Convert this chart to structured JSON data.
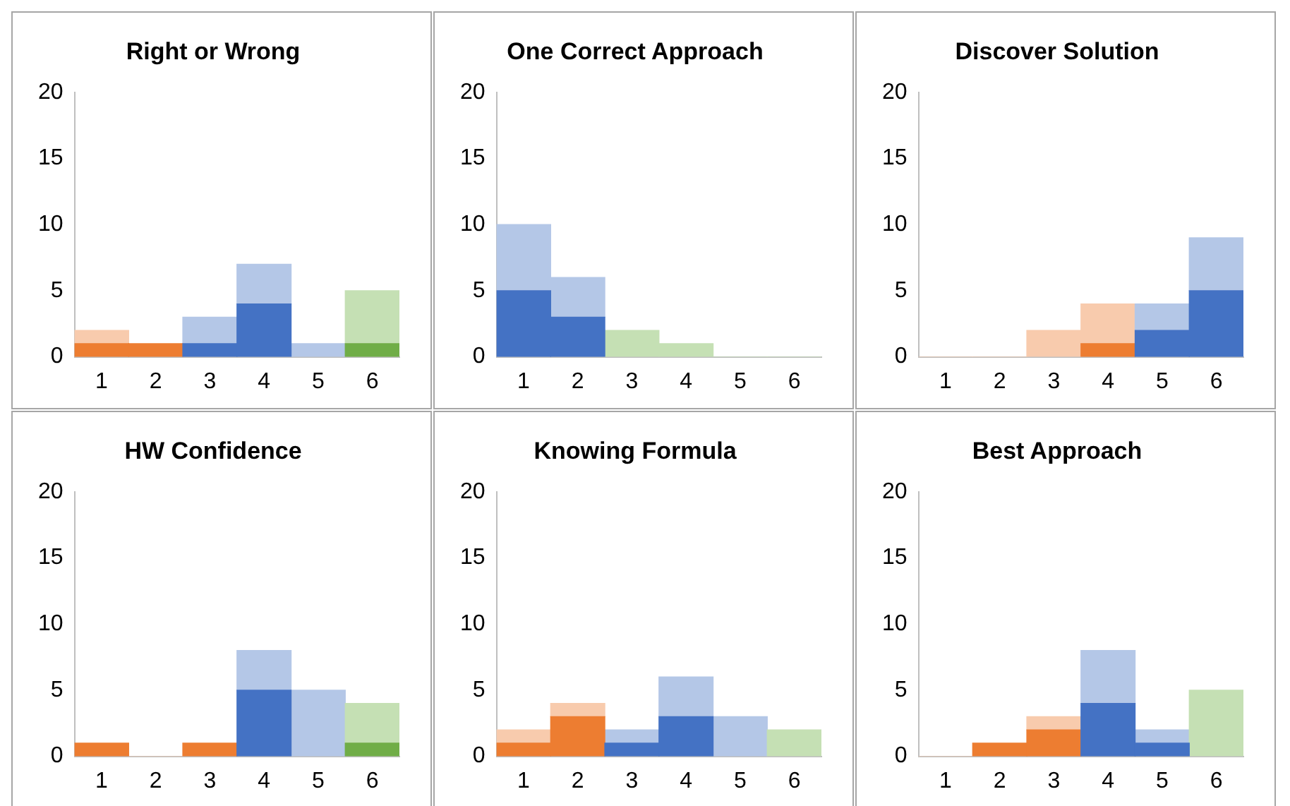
{
  "chart_data": [
    {
      "type": "bar",
      "title": "Right or Wrong",
      "categories": [
        "1",
        "2",
        "3",
        "4",
        "5",
        "6"
      ],
      "ylim": [
        0,
        20
      ],
      "yticks": [
        0,
        5,
        10,
        15,
        20
      ],
      "grid": false,
      "stacked": true,
      "series": [
        {
          "values": [
            1,
            1,
            1,
            4,
            null,
            1
          ],
          "colors": [
            "#ed7d31",
            "#ed7d31",
            "#4472c4",
            "#4472c4",
            "#4472c4",
            "#70ad47"
          ]
        },
        {
          "values": [
            1,
            null,
            2,
            3,
            1,
            4
          ],
          "colors": [
            "#f8cbad",
            "#f8cbad",
            "#b4c7e7",
            "#b4c7e7",
            "#b4c7e7",
            "#c5e0b4"
          ]
        }
      ]
    },
    {
      "type": "bar",
      "title": "One Correct Approach",
      "categories": [
        "1",
        "2",
        "3",
        "4",
        "5",
        "6"
      ],
      "ylim": [
        0,
        20
      ],
      "yticks": [
        0,
        5,
        10,
        15,
        20
      ],
      "grid": false,
      "stacked": true,
      "series": [
        {
          "values": [
            5,
            3,
            null,
            null,
            null,
            null
          ],
          "colors": [
            "#4472c4",
            "#4472c4",
            "#70ad47",
            "#70ad47",
            "#70ad47",
            "#70ad47"
          ]
        },
        {
          "values": [
            5,
            3,
            2,
            1,
            0,
            0
          ],
          "colors": [
            "#b4c7e7",
            "#b4c7e7",
            "#c5e0b4",
            "#c5e0b4",
            "#c5e0b4",
            "#c5e0b4"
          ]
        }
      ]
    },
    {
      "type": "bar",
      "title": "Discover Solution",
      "categories": [
        "1",
        "2",
        "3",
        "4",
        "5",
        "6"
      ],
      "ylim": [
        0,
        20
      ],
      "yticks": [
        0,
        5,
        10,
        15,
        20
      ],
      "grid": false,
      "stacked": true,
      "series": [
        {
          "values": [
            null,
            null,
            null,
            1,
            2,
            5
          ],
          "colors": [
            "#ed7d31",
            "#ed7d31",
            "#ed7d31",
            "#ed7d31",
            "#4472c4",
            "#4472c4"
          ]
        },
        {
          "values": [
            0,
            0,
            2,
            3,
            2,
            4
          ],
          "colors": [
            "#f8cbad",
            "#f8cbad",
            "#f8cbad",
            "#f8cbad",
            "#b4c7e7",
            "#b4c7e7"
          ]
        }
      ]
    },
    {
      "type": "bar",
      "title": "HW Confidence",
      "categories": [
        "1",
        "2",
        "3",
        "4",
        "5",
        "6"
      ],
      "ylim": [
        0,
        20
      ],
      "yticks": [
        0,
        5,
        10,
        15,
        20
      ],
      "grid": false,
      "stacked": true,
      "series": [
        {
          "values": [
            1,
            null,
            1,
            5,
            null,
            1
          ],
          "colors": [
            "#ed7d31",
            "#ed7d31",
            "#ed7d31",
            "#4472c4",
            "#4472c4",
            "#70ad47"
          ]
        },
        {
          "values": [
            null,
            0,
            null,
            3,
            5,
            3
          ],
          "colors": [
            "#f8cbad",
            "#f8cbad",
            "#f8cbad",
            "#b4c7e7",
            "#b4c7e7",
            "#c5e0b4"
          ]
        }
      ]
    },
    {
      "type": "bar",
      "title": "Knowing Formula",
      "categories": [
        "1",
        "2",
        "3",
        "4",
        "5",
        "6"
      ],
      "ylim": [
        0,
        20
      ],
      "yticks": [
        0,
        5,
        10,
        15,
        20
      ],
      "grid": false,
      "stacked": true,
      "series": [
        {
          "values": [
            1,
            3,
            1,
            3,
            null,
            null
          ],
          "colors": [
            "#ed7d31",
            "#ed7d31",
            "#4472c4",
            "#4472c4",
            "#4472c4",
            "#70ad47"
          ]
        },
        {
          "values": [
            1,
            1,
            1,
            3,
            3,
            2
          ],
          "colors": [
            "#f8cbad",
            "#f8cbad",
            "#b4c7e7",
            "#b4c7e7",
            "#b4c7e7",
            "#c5e0b4"
          ]
        }
      ]
    },
    {
      "type": "bar",
      "title": "Best Approach",
      "categories": [
        "1",
        "2",
        "3",
        "4",
        "5",
        "6"
      ],
      "ylim": [
        0,
        20
      ],
      "yticks": [
        0,
        5,
        10,
        15,
        20
      ],
      "grid": false,
      "stacked": true,
      "series": [
        {
          "values": [
            null,
            1,
            2,
            4,
            1,
            null
          ],
          "colors": [
            "#ed7d31",
            "#ed7d31",
            "#ed7d31",
            "#4472c4",
            "#4472c4",
            "#70ad47"
          ]
        },
        {
          "values": [
            0,
            null,
            1,
            4,
            1,
            5
          ],
          "colors": [
            "#f8cbad",
            "#f8cbad",
            "#f8cbad",
            "#b4c7e7",
            "#b4c7e7",
            "#c5e0b4"
          ]
        }
      ]
    }
  ]
}
